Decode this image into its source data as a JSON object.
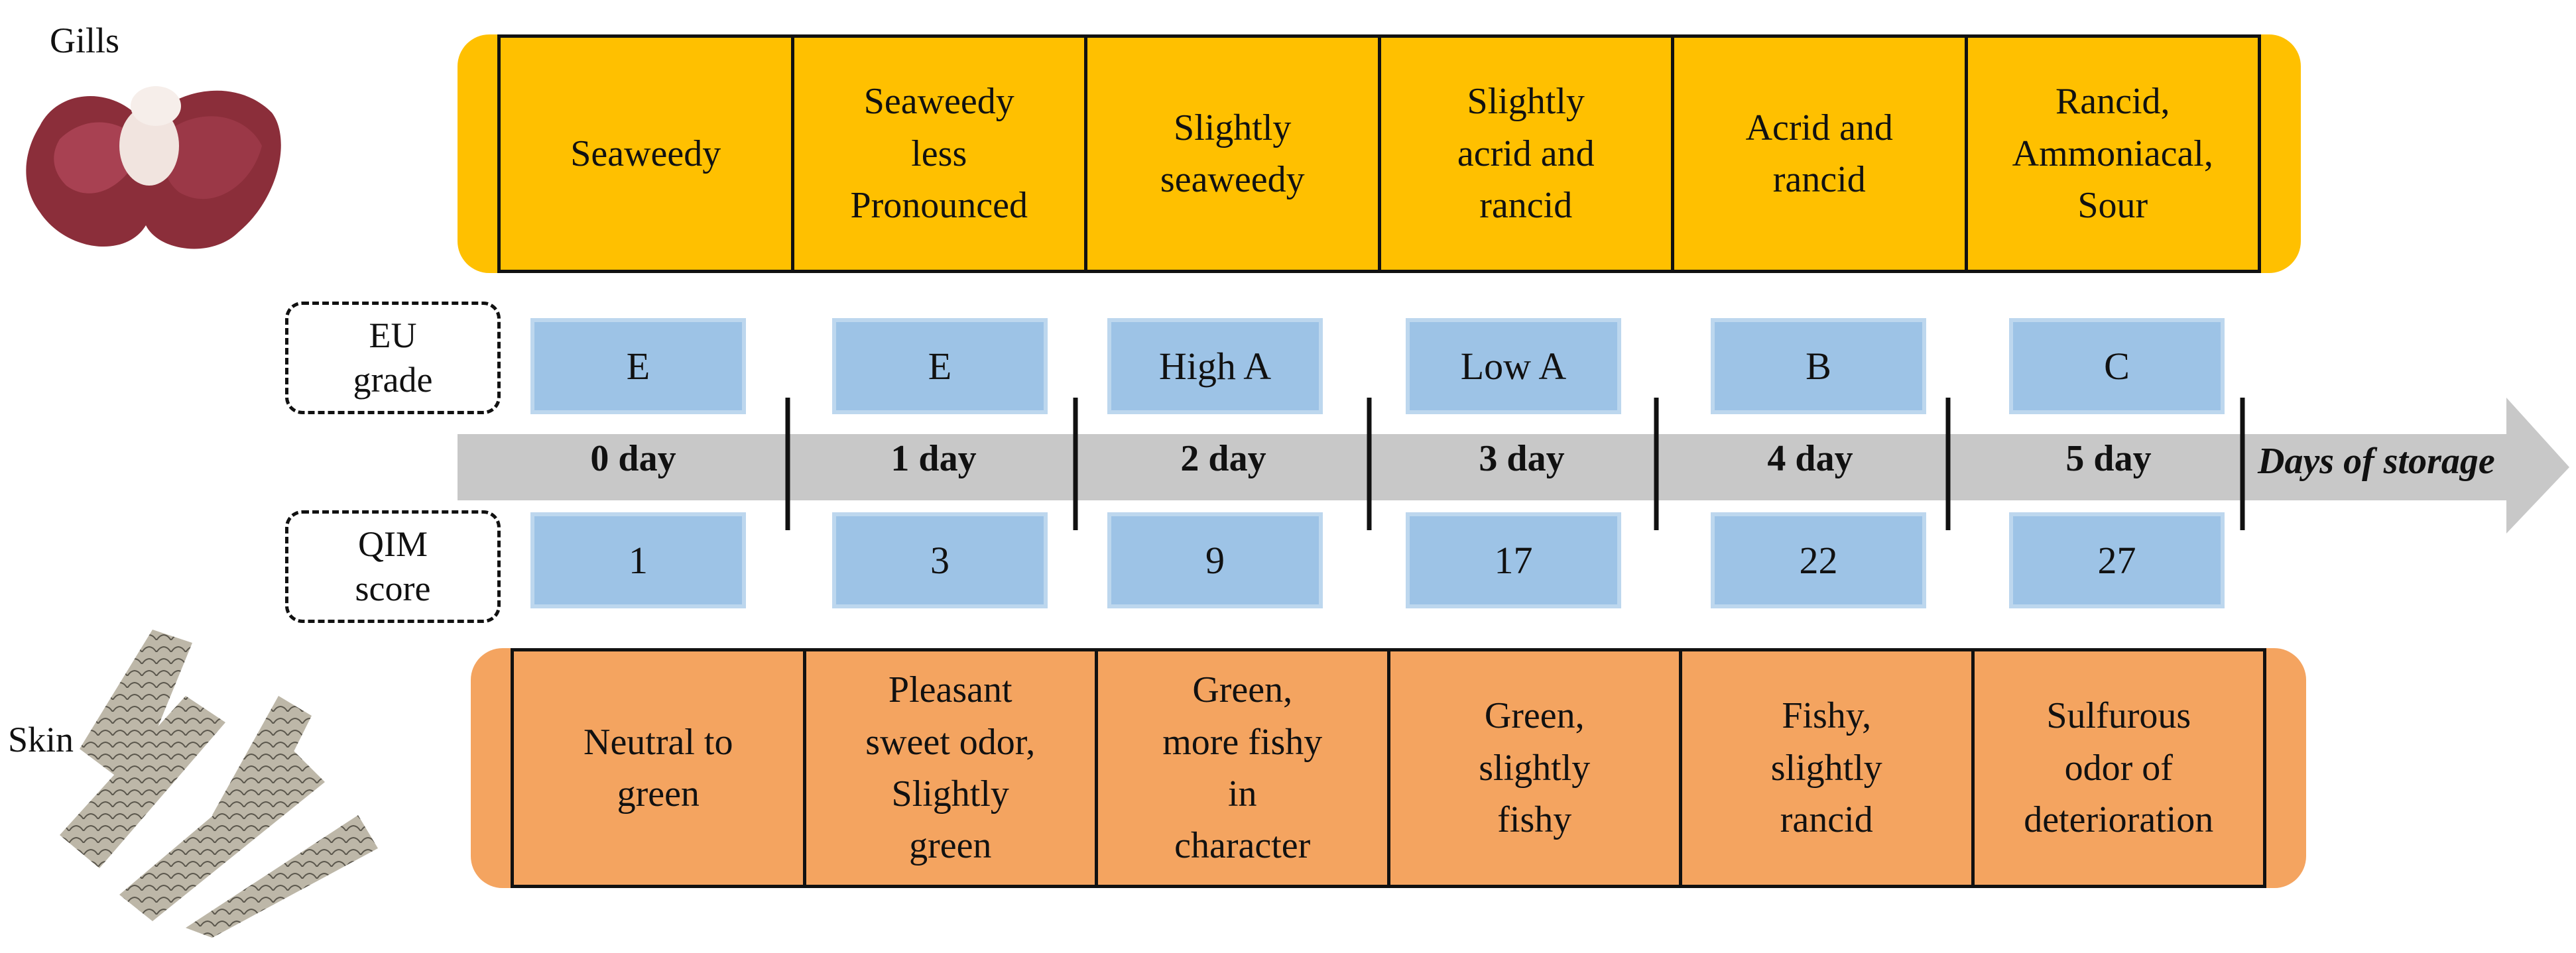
{
  "labels": {
    "gills": "Gills",
    "skin": "Skin",
    "eu_grade": [
      "EU",
      "grade"
    ],
    "qim_score": [
      "QIM",
      "score"
    ]
  },
  "gills_odor": [
    "Seaweedy",
    "Seaweedy\nless\nPronounced",
    "Slightly\nseaweedy",
    "Slightly\nacrid and\nrancid",
    "Acrid and\nrancid",
    "Rancid,\nAmmoniacal,\nSour"
  ],
  "eu_grades": [
    "E",
    "E",
    "High A",
    "Low A",
    "B",
    "C"
  ],
  "days": [
    "0 day",
    "1 day",
    "2 day",
    "3 day",
    "4 day",
    "5 day"
  ],
  "axis_title": "Days of storage",
  "qim_scores": [
    "1",
    "3",
    "9",
    "17",
    "22",
    "27"
  ],
  "skin_odor": [
    "Neutral to\ngreen",
    "Pleasant\nsweet odor,\nSlightly\ngreen",
    "Green,\nmore fishy\nin\ncharacter",
    "Green,\nslightly\nfishy",
    "Fishy,\nslightly\nrancid",
    "Sulfurous\nodor of\ndeterioration"
  ],
  "colors": {
    "gills_band": "#FFC000",
    "skin_band": "#F4A460",
    "grade_box": "#9DC3E6",
    "arrow": "#C8C8C8"
  }
}
